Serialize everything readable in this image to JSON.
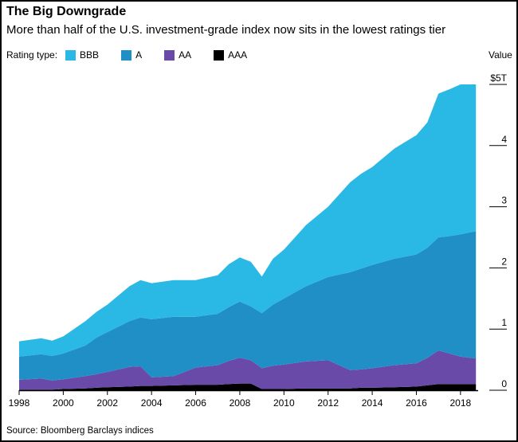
{
  "title": "The Big Downgrade",
  "subtitle": "More than half of the U.S. investment-grade index now sits in the lowest ratings tier",
  "legend": {
    "label": "Rating type:",
    "items": [
      {
        "name": "BBB",
        "color": "#2ab8e5"
      },
      {
        "name": "A",
        "color": "#1f8fc6"
      },
      {
        "name": "AA",
        "color": "#6a4aa9"
      },
      {
        "name": "AAA",
        "color": "#000000"
      }
    ]
  },
  "value_axis_label": "Value",
  "source": "Source: Bloomberg Barclays indices",
  "chart_data": {
    "type": "area",
    "stacked": true,
    "title": "The Big Downgrade",
    "subtitle": "More than half of the U.S. investment-grade index now sits in the lowest ratings tier",
    "ylabel": "Value",
    "ylim": [
      0,
      5
    ],
    "yticks": [
      0,
      1,
      2,
      3,
      4,
      5
    ],
    "ytick_labels": [
      "0",
      "1",
      "2",
      "3",
      "4",
      "$5T"
    ],
    "xlim": [
      1998,
      2018.8
    ],
    "xticks": [
      1998,
      2000,
      2002,
      2004,
      2006,
      2008,
      2010,
      2012,
      2014,
      2016,
      2018
    ],
    "xtick_labels": [
      "1998",
      "2000",
      "2002",
      "2004",
      "2006",
      "2008",
      "2010",
      "2012",
      "2014",
      "2016",
      "2018"
    ],
    "x": [
      1998.0,
      1999.0,
      1999.5,
      2000.0,
      2001.0,
      2001.5,
      2002.0,
      2003.0,
      2003.5,
      2004.0,
      2005.0,
      2006.0,
      2007.0,
      2007.5,
      2008.0,
      2008.5,
      2009.0,
      2009.5,
      2010.0,
      2011.0,
      2012.0,
      2013.0,
      2013.5,
      2014.0,
      2015.0,
      2016.0,
      2016.5,
      2017.0,
      2017.5,
      2018.0,
      2018.7
    ],
    "series": [
      {
        "name": "AAA",
        "values": [
          0.01,
          0.01,
          0.01,
          0.02,
          0.03,
          0.04,
          0.05,
          0.06,
          0.07,
          0.07,
          0.08,
          0.09,
          0.09,
          0.1,
          0.11,
          0.11,
          0.02,
          0.02,
          0.02,
          0.03,
          0.03,
          0.03,
          0.04,
          0.04,
          0.05,
          0.06,
          0.08,
          0.1,
          0.1,
          0.1,
          0.1
        ]
      },
      {
        "name": "AA",
        "values": [
          0.16,
          0.18,
          0.15,
          0.16,
          0.2,
          0.22,
          0.25,
          0.32,
          0.32,
          0.14,
          0.15,
          0.28,
          0.32,
          0.38,
          0.42,
          0.38,
          0.34,
          0.38,
          0.4,
          0.44,
          0.46,
          0.3,
          0.3,
          0.32,
          0.36,
          0.38,
          0.45,
          0.55,
          0.5,
          0.45,
          0.42
        ]
      },
      {
        "name": "A",
        "values": [
          0.38,
          0.4,
          0.4,
          0.42,
          0.5,
          0.6,
          0.65,
          0.75,
          0.8,
          0.95,
          0.97,
          0.83,
          0.84,
          0.88,
          0.92,
          0.88,
          0.9,
          1.0,
          1.08,
          1.23,
          1.36,
          1.6,
          1.65,
          1.69,
          1.74,
          1.78,
          1.8,
          1.85,
          1.92,
          2.0,
          2.08
        ]
      },
      {
        "name": "BBB",
        "values": [
          0.25,
          0.26,
          0.25,
          0.28,
          0.4,
          0.42,
          0.45,
          0.57,
          0.61,
          0.59,
          0.6,
          0.6,
          0.63,
          0.7,
          0.72,
          0.73,
          0.6,
          0.75,
          0.8,
          1.0,
          1.15,
          1.47,
          1.55,
          1.6,
          1.8,
          1.95,
          2.05,
          2.35,
          2.4,
          2.45,
          2.4
        ]
      }
    ]
  }
}
